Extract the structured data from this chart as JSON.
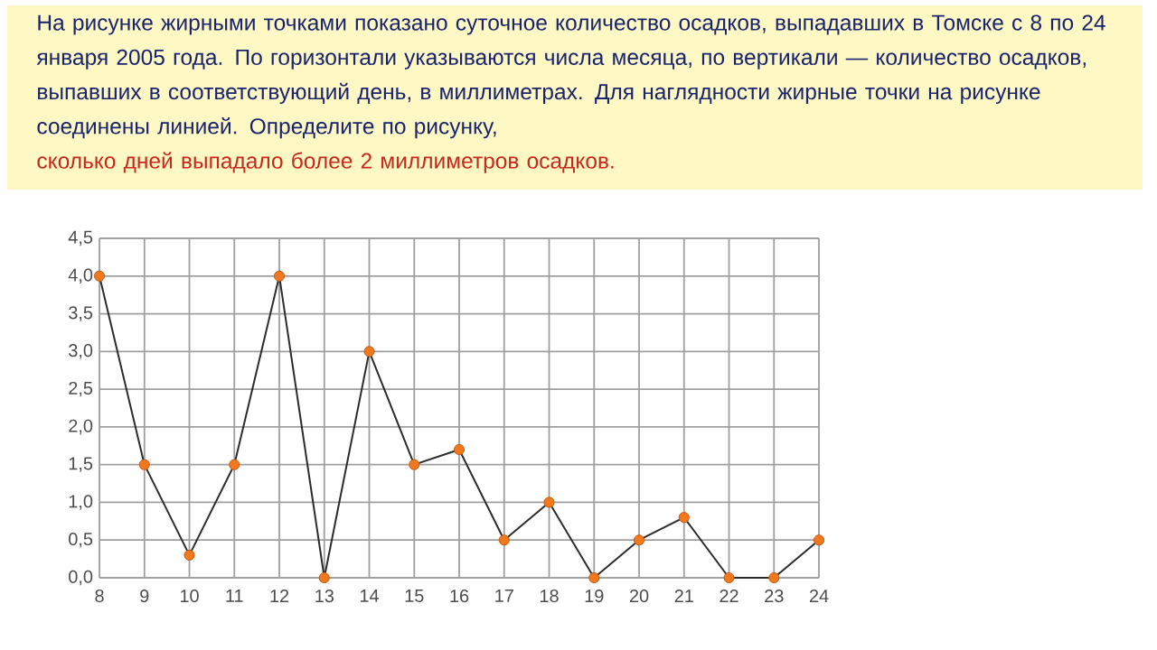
{
  "chart_data": {
    "type": "line",
    "title": "На рисунке жирными точками показано суточное количество осадков, выпадавших в Томске с 8 по 24 января 2005 года. По горизонтали указываются числа месяца, по вертикали — количество осадков, выпавших в соответствующий день, в миллиметрах. Для наглядности жирные точки на рисунке соединены линией. Определите по рисунку,",
    "subtitle": "сколько дней выпадало более 2 миллиметров осадков.",
    "x": [
      8,
      9,
      10,
      11,
      12,
      13,
      14,
      15,
      16,
      17,
      18,
      19,
      20,
      21,
      22,
      23,
      24
    ],
    "series": [
      {
        "color": "#2b2b2b",
        "values": [
          4,
          1.5,
          0.3,
          1.5,
          4,
          0,
          3,
          1.5,
          1.7,
          0.5,
          1,
          0,
          0.5,
          0.8,
          0,
          0,
          0.5
        ]
      }
    ],
    "marker": "circle",
    "xlim": [
      8,
      24
    ],
    "xticks": [
      8,
      9,
      10,
      11,
      12,
      13,
      14,
      15,
      16,
      17,
      18,
      19,
      20,
      21,
      22,
      23,
      24
    ],
    "ylim": [
      0,
      4.5
    ],
    "yticks": [
      {
        "value": 0,
        "label": "0,0"
      },
      {
        "value": 0.5,
        "label": "0,5"
      },
      {
        "value": 1,
        "label": "1,0"
      },
      {
        "value": 1.5,
        "label": "1,5"
      },
      {
        "value": 2,
        "label": "2,0"
      },
      {
        "value": 2.5,
        "label": "2,5"
      },
      {
        "value": 3,
        "label": "3,0"
      },
      {
        "value": 3.5,
        "label": "3,5"
      },
      {
        "value": 4,
        "label": "4,0"
      },
      {
        "value": 4.5,
        "label": "4,5"
      }
    ],
    "grid": true
  }
}
